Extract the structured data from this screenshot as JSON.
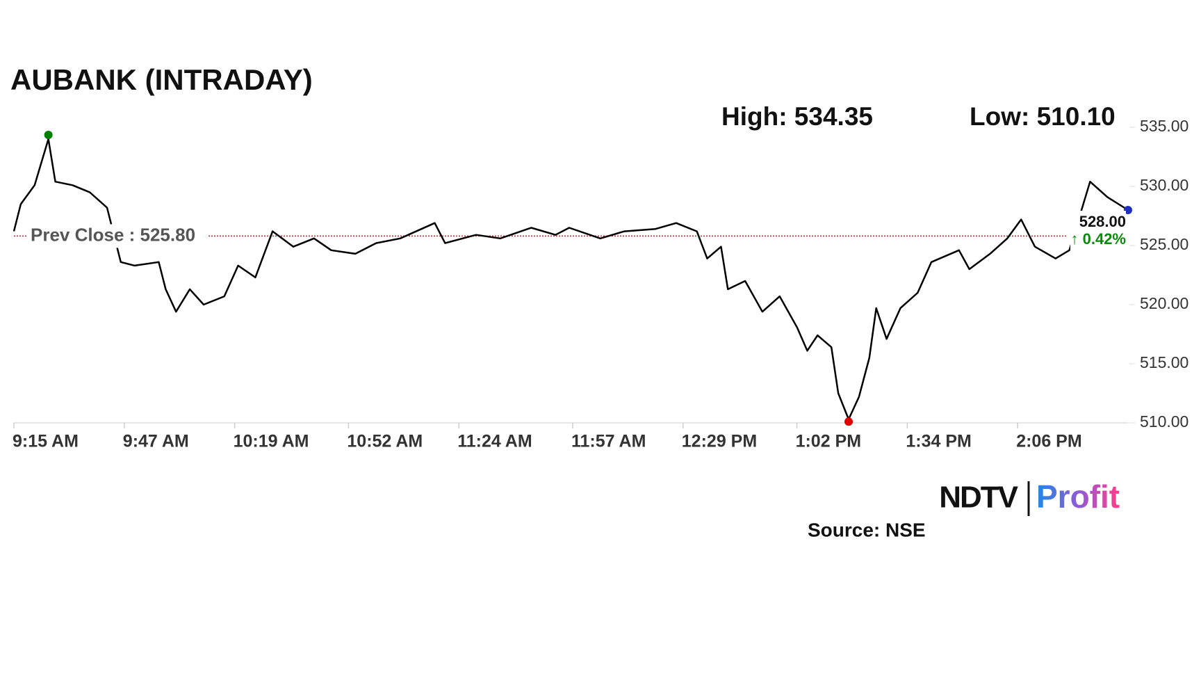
{
  "chart_data": {
    "type": "line",
    "title": "AUBANK (INTRADAY)",
    "high": {
      "label": "High: 534.35",
      "value": 534.35,
      "x": "9:25 AM",
      "color": "#008000"
    },
    "low": {
      "label": "Low: 510.10",
      "value": 510.1,
      "x": "1:17 PM",
      "color": "#e00000"
    },
    "prev_close": {
      "label": "Prev Close : 525.80",
      "value": 525.8,
      "color": "#b22222"
    },
    "last": {
      "label": "528.00",
      "value": 528,
      "x": "2:38 PM",
      "color": "#1f2fbf",
      "change": "↑ 0.42%"
    },
    "x": [
      "9:15 AM",
      "9:17 AM",
      "9:21 AM",
      "9:25 AM",
      "9:27 AM",
      "9:32 AM",
      "9:37 AM",
      "9:42 AM",
      "9:46 AM",
      "9:50 AM",
      "9:57 AM",
      "9:59 AM",
      "10:02 AM",
      "10:06 AM",
      "10:10 AM",
      "10:16 AM",
      "10:20 AM",
      "10:25 AM",
      "10:30 AM",
      "10:36 AM",
      "10:42 AM",
      "10:47 AM",
      "10:54 AM",
      "11:00 AM",
      "11:07 AM",
      "11:17 AM",
      "11:20 AM",
      "11:29 AM",
      "11:36 AM",
      "11:45 AM",
      "11:52 AM",
      "11:56 AM",
      "12:05 PM",
      "12:12 PM",
      "12:21 PM",
      "12:27 PM",
      "12:33 PM",
      "12:36 PM",
      "12:40 PM",
      "12:42 PM",
      "12:47 PM",
      "12:52 PM",
      "12:57 PM",
      "1:02 PM",
      "1:05 PM",
      "1:08 PM",
      "1:12 PM",
      "1:14 PM",
      "1:17 PM",
      "1:20 PM",
      "1:23 PM",
      "1:25 PM",
      "1:28 PM",
      "1:32 PM",
      "1:37 PM",
      "1:41 PM",
      "1:49 PM",
      "1:52 PM",
      "1:58 PM",
      "2:03 PM",
      "2:07 PM",
      "2:11 PM",
      "2:17 PM",
      "2:21 PM",
      "2:27 PM",
      "2:32 PM",
      "2:38 PM"
    ],
    "series": [
      {
        "name": "AUBANK",
        "color": "#000000",
        "values": [
          526.2,
          528.5,
          530.1,
          534.0,
          530.4,
          530.1,
          529.5,
          528.2,
          523.6,
          523.3,
          523.6,
          521.3,
          519.4,
          521.3,
          520.0,
          520.7,
          523.3,
          522.3,
          526.2,
          524.9,
          525.6,
          524.6,
          524.3,
          525.2,
          525.6,
          526.9,
          525.2,
          525.9,
          525.6,
          526.5,
          525.9,
          526.5,
          525.6,
          526.2,
          526.4,
          526.9,
          526.2,
          523.9,
          524.9,
          521.3,
          522.0,
          519.4,
          520.7,
          518.1,
          516.1,
          517.4,
          516.4,
          512.5,
          510.3,
          512.2,
          515.5,
          519.7,
          517.1,
          519.7,
          521.0,
          523.6,
          524.6,
          523.0,
          524.3,
          525.6,
          527.2,
          524.9,
          523.9,
          524.6,
          530.4,
          529.1,
          528.0
        ]
      }
    ],
    "xlim": [
      "9:15 AM",
      "2:38 PM"
    ],
    "xticks": [
      "9:15 AM",
      "9:47 AM",
      "10:19 AM",
      "10:52 AM",
      "11:24 AM",
      "11:57 AM",
      "12:29 PM",
      "1:02 PM",
      "1:34 PM",
      "2:06 PM"
    ],
    "ylim": [
      510,
      535
    ],
    "yticks": [
      {
        "value": 510,
        "label": "510.00"
      },
      {
        "value": 515,
        "label": "515.00"
      },
      {
        "value": 520,
        "label": "520.00"
      },
      {
        "value": 525,
        "label": "525.00"
      },
      {
        "value": 530,
        "label": "530.00"
      },
      {
        "value": 535,
        "label": "535.00"
      }
    ],
    "brand": {
      "left": "NDTV",
      "right": "Profit"
    },
    "source": "Source: NSE"
  }
}
